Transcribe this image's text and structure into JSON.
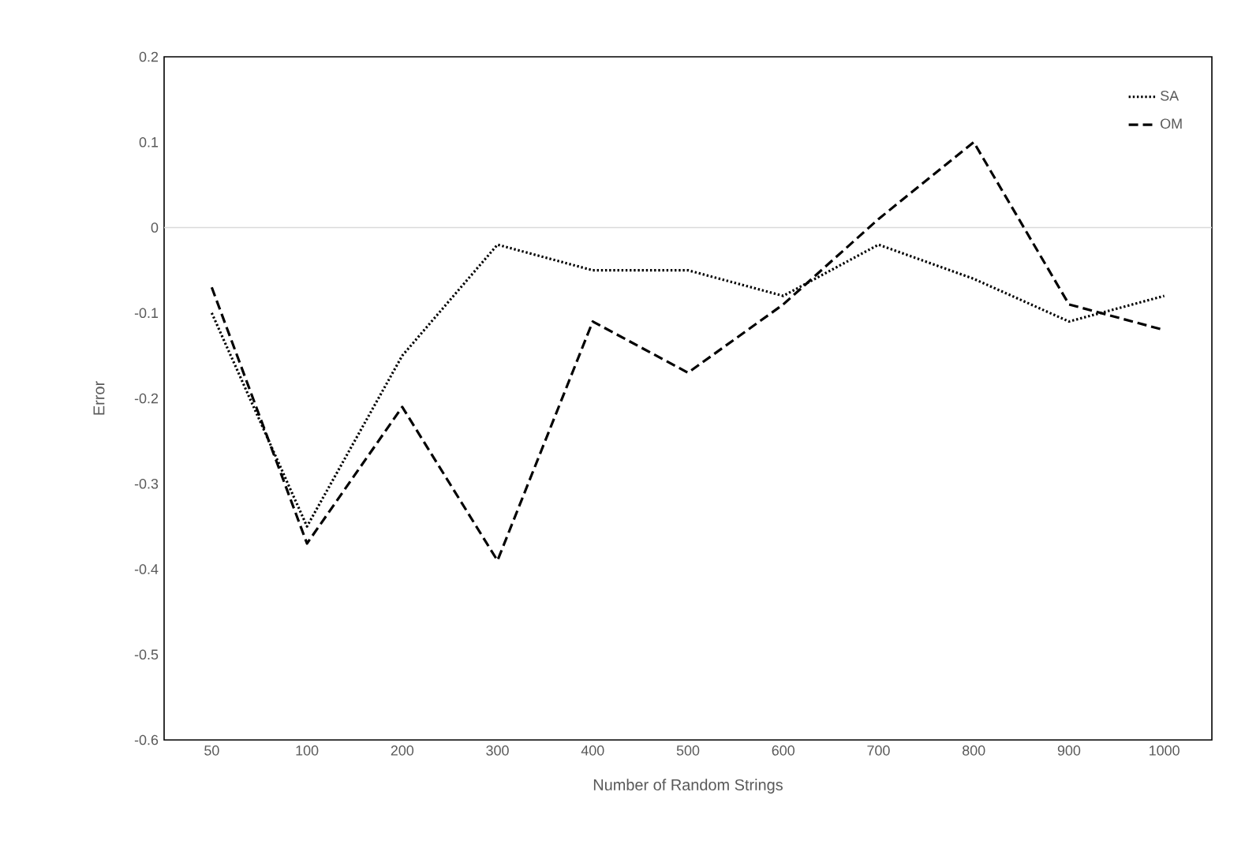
{
  "chart_data": {
    "type": "line",
    "xlabel": "Number of Random Strings",
    "ylabel": "Error",
    "categories": [
      "50",
      "100",
      "200",
      "300",
      "400",
      "500",
      "600",
      "700",
      "800",
      "900",
      "1000"
    ],
    "series": [
      {
        "name": "SA",
        "color": "#000000",
        "line_style": "dotted",
        "values": [
          -0.1,
          -0.35,
          -0.15,
          -0.02,
          -0.05,
          -0.05,
          -0.08,
          -0.02,
          -0.06,
          -0.11,
          -0.08
        ]
      },
      {
        "name": "OM",
        "color": "#000000",
        "line_style": "dashed",
        "values": [
          -0.07,
          -0.37,
          -0.21,
          -0.39,
          -0.11,
          -0.17,
          -0.09,
          0.01,
          0.1,
          -0.09,
          -0.12
        ]
      }
    ],
    "ylim": [
      -0.6,
      0.2
    ],
    "yticks": [
      -0.6,
      -0.5,
      -0.4,
      -0.3,
      -0.2,
      -0.1,
      0,
      0.1,
      0.2
    ],
    "ref_lines": [
      {
        "axis": "y",
        "value": 0,
        "color": "#d9d9d9"
      }
    ],
    "legend": "top right",
    "marker": "none",
    "grid": false
  }
}
